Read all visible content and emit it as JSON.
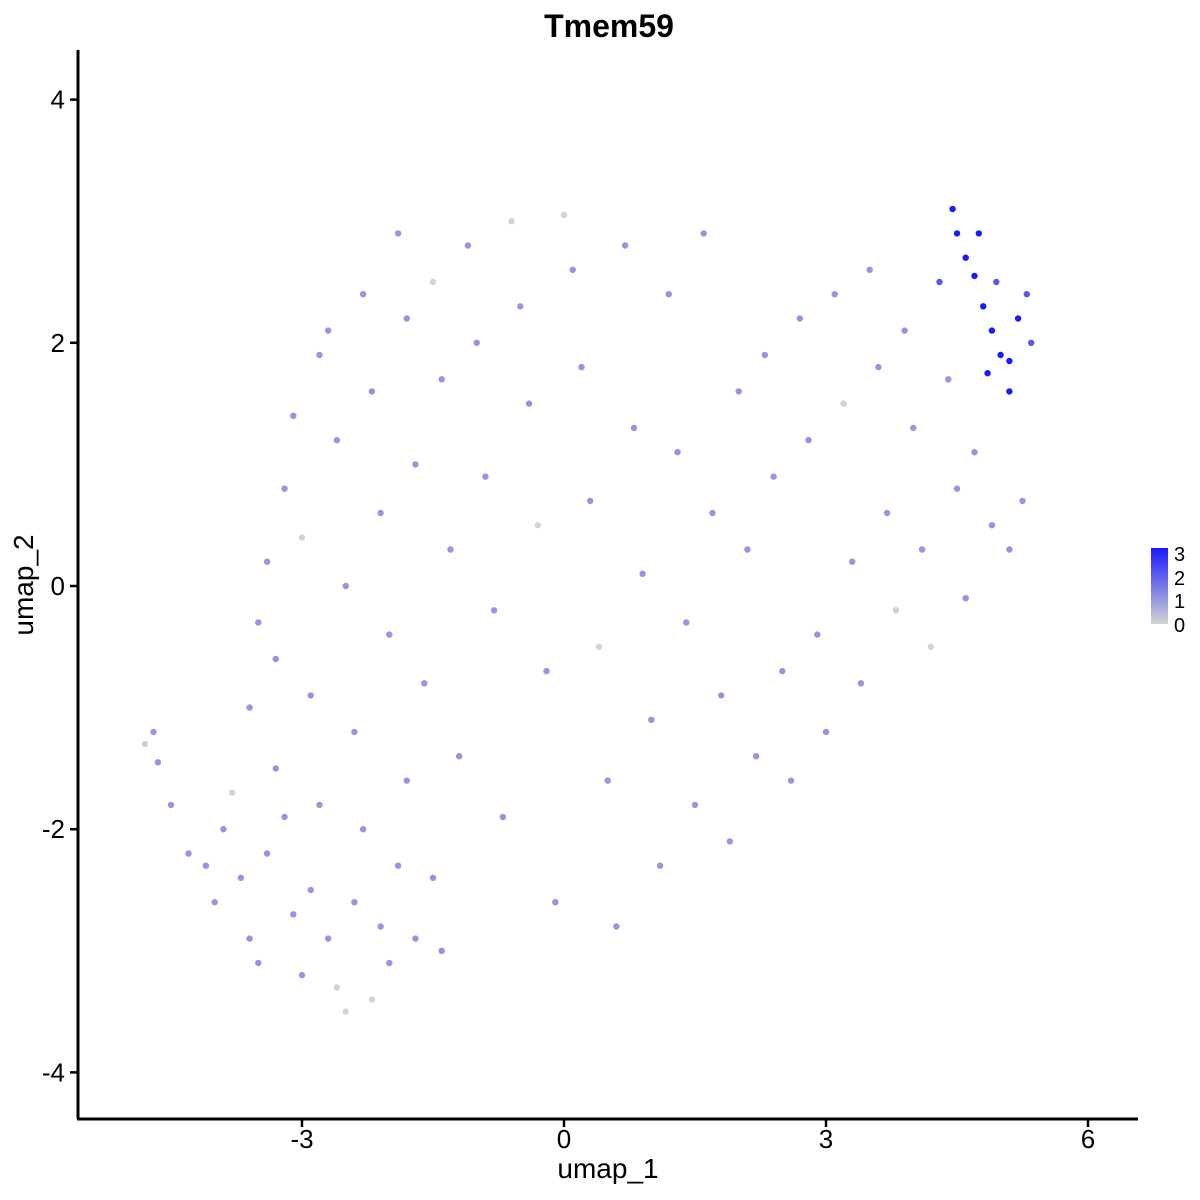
{
  "chart_data": {
    "type": "scatter",
    "title": "Tmem59",
    "xlabel": "umap_1",
    "ylabel": "umap_2",
    "xlim": [
      -5.7,
      6.5
    ],
    "ylim": [
      -4.4,
      4.4
    ],
    "xticks": [
      -3,
      0,
      3,
      6
    ],
    "yticks": [
      -4,
      -2,
      0,
      2,
      4
    ],
    "grid": false,
    "legend": {
      "position": "right",
      "type": "colorbar",
      "labels": [
        "3",
        "2",
        "1",
        "0"
      ],
      "range": [
        0,
        3
      ],
      "low_color": "#d3d3d3",
      "high_color": "#1a1aff"
    },
    "points_note_values": "expression level per cell (0-3)",
    "points": [
      [
        -4.8,
        -1.3,
        0
      ],
      [
        -4.7,
        -1.2,
        1
      ],
      [
        -4.65,
        -1.45,
        1
      ],
      [
        -4.5,
        -1.8,
        1
      ],
      [
        -4.3,
        -2.2,
        1
      ],
      [
        -4.1,
        -2.3,
        1
      ],
      [
        -4.0,
        -2.6,
        1
      ],
      [
        -3.9,
        -2.0,
        1
      ],
      [
        -3.8,
        -1.7,
        0
      ],
      [
        -3.7,
        -2.4,
        1
      ],
      [
        -3.6,
        -2.9,
        1
      ],
      [
        -3.5,
        -3.1,
        1
      ],
      [
        -3.4,
        -2.2,
        1
      ],
      [
        -3.3,
        -1.5,
        1
      ],
      [
        -3.2,
        -1.9,
        1
      ],
      [
        -3.1,
        -2.7,
        1
      ],
      [
        -3.0,
        -3.2,
        1
      ],
      [
        -2.9,
        -2.5,
        1
      ],
      [
        -2.8,
        -1.8,
        1
      ],
      [
        -2.7,
        -2.9,
        1
      ],
      [
        -2.6,
        -3.3,
        0
      ],
      [
        -2.5,
        -3.5,
        0
      ],
      [
        -2.4,
        -2.6,
        1
      ],
      [
        -2.3,
        -2.0,
        1
      ],
      [
        -2.2,
        -3.4,
        0
      ],
      [
        -2.1,
        -2.8,
        1
      ],
      [
        -2.0,
        -3.1,
        1
      ],
      [
        -1.9,
        -2.3,
        1
      ],
      [
        -1.8,
        -1.6,
        1
      ],
      [
        -1.7,
        -2.9,
        1
      ],
      [
        -1.5,
        -2.4,
        1
      ],
      [
        -1.4,
        -3.0,
        1
      ],
      [
        -3.6,
        -1.0,
        1
      ],
      [
        -3.5,
        -0.3,
        1
      ],
      [
        -3.4,
        0.2,
        1
      ],
      [
        -3.3,
        -0.6,
        1
      ],
      [
        -3.2,
        0.8,
        1
      ],
      [
        -3.1,
        1.4,
        1
      ],
      [
        -3.0,
        0.4,
        0
      ],
      [
        -2.9,
        -0.9,
        1
      ],
      [
        -2.8,
        1.9,
        1
      ],
      [
        -2.7,
        2.1,
        1
      ],
      [
        -2.6,
        1.2,
        1
      ],
      [
        -2.5,
        0.0,
        1
      ],
      [
        -2.4,
        -1.2,
        1
      ],
      [
        -2.3,
        2.4,
        1
      ],
      [
        -2.2,
        1.6,
        1
      ],
      [
        -2.1,
        0.6,
        1
      ],
      [
        -2.0,
        -0.4,
        1
      ],
      [
        -1.9,
        2.9,
        1
      ],
      [
        -1.8,
        2.2,
        1
      ],
      [
        -1.7,
        1.0,
        1
      ],
      [
        -1.6,
        -0.8,
        1
      ],
      [
        -1.5,
        2.5,
        0
      ],
      [
        -1.4,
        1.7,
        1
      ],
      [
        -1.3,
        0.3,
        1
      ],
      [
        -1.2,
        -1.4,
        1
      ],
      [
        -1.1,
        2.8,
        1
      ],
      [
        -1.0,
        2.0,
        1
      ],
      [
        -0.9,
        0.9,
        1
      ],
      [
        -0.8,
        -0.2,
        1
      ],
      [
        -0.7,
        -1.9,
        1
      ],
      [
        -0.6,
        3.0,
        0
      ],
      [
        -0.5,
        2.3,
        1
      ],
      [
        -0.4,
        1.5,
        1
      ],
      [
        -0.3,
        0.5,
        0
      ],
      [
        -0.2,
        -0.7,
        1
      ],
      [
        -0.1,
        -2.6,
        1
      ],
      [
        0.0,
        3.05,
        0
      ],
      [
        0.1,
        2.6,
        1
      ],
      [
        0.2,
        1.8,
        1
      ],
      [
        0.3,
        0.7,
        1
      ],
      [
        0.4,
        -0.5,
        0
      ],
      [
        0.5,
        -1.6,
        1
      ],
      [
        0.6,
        -2.8,
        1
      ],
      [
        0.7,
        2.8,
        1
      ],
      [
        0.8,
        1.3,
        1
      ],
      [
        0.9,
        0.1,
        1
      ],
      [
        1.0,
        -1.1,
        1
      ],
      [
        1.1,
        -2.3,
        1
      ],
      [
        1.2,
        2.4,
        1
      ],
      [
        1.3,
        1.1,
        1
      ],
      [
        1.4,
        -0.3,
        1
      ],
      [
        1.5,
        -1.8,
        1
      ],
      [
        1.6,
        2.9,
        1
      ],
      [
        1.7,
        0.6,
        1
      ],
      [
        1.8,
        -0.9,
        1
      ],
      [
        1.9,
        -2.1,
        1
      ],
      [
        2.0,
        1.6,
        1
      ],
      [
        2.1,
        0.3,
        1
      ],
      [
        2.2,
        -1.4,
        1
      ],
      [
        2.3,
        1.9,
        1
      ],
      [
        2.4,
        0.9,
        1
      ],
      [
        2.5,
        -0.7,
        1
      ],
      [
        2.6,
        -1.6,
        1
      ],
      [
        2.7,
        2.2,
        1
      ],
      [
        2.8,
        1.2,
        1
      ],
      [
        2.9,
        -0.4,
        1
      ],
      [
        3.0,
        -1.2,
        1
      ],
      [
        3.1,
        2.4,
        1
      ],
      [
        3.2,
        1.5,
        0
      ],
      [
        3.3,
        0.2,
        1
      ],
      [
        3.4,
        -0.8,
        1
      ],
      [
        3.5,
        2.6,
        1
      ],
      [
        3.6,
        1.8,
        1
      ],
      [
        3.7,
        0.6,
        1
      ],
      [
        3.8,
        -0.2,
        0
      ],
      [
        3.9,
        2.1,
        1
      ],
      [
        4.0,
        1.3,
        1
      ],
      [
        4.1,
        0.3,
        1
      ],
      [
        4.2,
        -0.5,
        0
      ],
      [
        4.3,
        2.5,
        2
      ],
      [
        4.4,
        1.7,
        1
      ],
      [
        4.5,
        0.8,
        1
      ],
      [
        4.6,
        -0.1,
        1
      ],
      [
        4.45,
        3.1,
        3
      ],
      [
        4.5,
        2.9,
        3
      ],
      [
        4.6,
        2.7,
        3
      ],
      [
        4.7,
        2.55,
        3
      ],
      [
        4.8,
        2.3,
        3
      ],
      [
        4.9,
        2.1,
        3
      ],
      [
        5.0,
        1.9,
        3
      ],
      [
        5.1,
        1.85,
        3
      ],
      [
        5.2,
        2.2,
        3
      ],
      [
        5.3,
        2.4,
        2
      ],
      [
        5.35,
        2.0,
        2
      ],
      [
        5.1,
        1.6,
        3
      ],
      [
        4.75,
        2.9,
        3
      ],
      [
        4.95,
        2.5,
        2
      ],
      [
        4.85,
        1.75,
        3
      ],
      [
        5.25,
        0.7,
        1
      ],
      [
        5.1,
        0.3,
        1
      ],
      [
        4.9,
        0.5,
        1
      ],
      [
        4.7,
        1.1,
        1
      ]
    ]
  }
}
